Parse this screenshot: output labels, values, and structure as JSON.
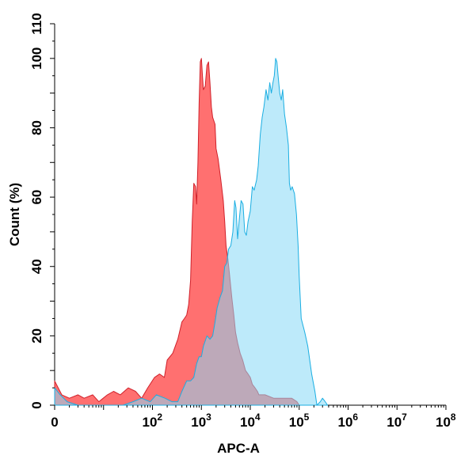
{
  "chart_data": {
    "type": "area",
    "title": "",
    "xlabel": "APC-A",
    "ylabel": "Count (%)",
    "x_scale": "log",
    "xlim": [
      1,
      100000000
    ],
    "ylim": [
      0,
      110
    ],
    "x_tick_labels": [
      {
        "value": 1,
        "base": "0",
        "exp": ""
      },
      {
        "value": 100,
        "base": "10",
        "exp": "2"
      },
      {
        "value": 1000,
        "base": "10",
        "exp": "3"
      },
      {
        "value": 10000,
        "base": "10",
        "exp": "4"
      },
      {
        "value": 100000,
        "base": "10",
        "exp": "5"
      },
      {
        "value": 1000000,
        "base": "10",
        "exp": "6"
      },
      {
        "value": 10000000,
        "base": "10",
        "exp": "7"
      },
      {
        "value": 100000000,
        "base": "10",
        "exp": "8"
      }
    ],
    "y_ticks": [
      0,
      20,
      40,
      60,
      80,
      100,
      110
    ],
    "grid": false,
    "legend": "none",
    "series": [
      {
        "color_fill": "#ff7070",
        "color_line": "#d0202a",
        "points": [
          [
            1,
            7
          ],
          [
            1.4,
            3
          ],
          [
            2,
            2
          ],
          [
            3,
            3
          ],
          [
            4,
            2
          ],
          [
            6,
            3
          ],
          [
            8,
            1
          ],
          [
            12,
            3
          ],
          [
            16,
            4
          ],
          [
            22,
            3
          ],
          [
            32,
            5
          ],
          [
            45,
            4
          ],
          [
            60,
            2
          ],
          [
            80,
            5
          ],
          [
            110,
            8
          ],
          [
            140,
            9
          ],
          [
            175,
            8
          ],
          [
            200,
            13
          ],
          [
            260,
            15
          ],
          [
            330,
            19
          ],
          [
            400,
            24
          ],
          [
            450,
            25
          ],
          [
            500,
            26
          ],
          [
            550,
            29
          ],
          [
            600,
            36
          ],
          [
            650,
            53
          ],
          [
            700,
            64
          ],
          [
            760,
            63
          ],
          [
            800,
            58
          ],
          [
            850,
            70
          ],
          [
            900,
            87
          ],
          [
            950,
            99
          ],
          [
            1000,
            100
          ],
          [
            1050,
            95
          ],
          [
            1100,
            91
          ],
          [
            1200,
            92
          ],
          [
            1300,
            98
          ],
          [
            1400,
            99
          ],
          [
            1500,
            93
          ],
          [
            1600,
            86
          ],
          [
            1700,
            83
          ],
          [
            1900,
            81
          ],
          [
            2000,
            74
          ],
          [
            2200,
            71
          ],
          [
            2500,
            65
          ],
          [
            2800,
            59
          ],
          [
            3000,
            53
          ],
          [
            3200,
            46
          ],
          [
            3500,
            42
          ],
          [
            3800,
            37
          ],
          [
            4200,
            31
          ],
          [
            4600,
            26
          ],
          [
            5000,
            21
          ],
          [
            5500,
            18
          ],
          [
            6200,
            15
          ],
          [
            7000,
            13
          ],
          [
            8000,
            10
          ],
          [
            9000,
            9
          ],
          [
            10000,
            8
          ],
          [
            11000,
            6
          ],
          [
            12500,
            5
          ],
          [
            14000,
            4
          ],
          [
            15000,
            3
          ],
          [
            20000,
            3
          ],
          [
            30000,
            2
          ],
          [
            50000,
            2
          ],
          [
            70000,
            2
          ],
          [
            90000,
            1
          ],
          [
            100000,
            0
          ]
        ]
      },
      {
        "color_fill": "#86d8f6",
        "color_line": "#1aaee2",
        "points": [
          [
            1,
            5
          ],
          [
            1.3,
            3
          ],
          [
            1.8,
            1
          ],
          [
            3,
            0
          ],
          [
            6,
            0
          ],
          [
            12,
            0
          ],
          [
            25,
            0
          ],
          [
            40,
            1
          ],
          [
            60,
            2
          ],
          [
            90,
            1
          ],
          [
            120,
            3
          ],
          [
            180,
            2
          ],
          [
            250,
            1
          ],
          [
            330,
            1
          ],
          [
            400,
            4
          ],
          [
            500,
            7
          ],
          [
            600,
            7
          ],
          [
            700,
            8
          ],
          [
            800,
            12
          ],
          [
            900,
            14
          ],
          [
            1000,
            14
          ],
          [
            1100,
            17
          ],
          [
            1300,
            20
          ],
          [
            1500,
            19
          ],
          [
            1700,
            20
          ],
          [
            1900,
            24
          ],
          [
            2100,
            28
          ],
          [
            2400,
            31
          ],
          [
            2700,
            33
          ],
          [
            3000,
            40
          ],
          [
            3300,
            41
          ],
          [
            3600,
            45
          ],
          [
            4000,
            46
          ],
          [
            4400,
            50
          ],
          [
            4800,
            59
          ],
          [
            5100,
            57
          ],
          [
            5500,
            48
          ],
          [
            6000,
            54
          ],
          [
            6500,
            59
          ],
          [
            7100,
            58
          ],
          [
            7700,
            50
          ],
          [
            8300,
            49
          ],
          [
            9000,
            53
          ],
          [
            10000,
            56
          ],
          [
            11000,
            63
          ],
          [
            12000,
            62
          ],
          [
            13500,
            65
          ],
          [
            14500,
            69
          ],
          [
            16000,
            78
          ],
          [
            17500,
            83
          ],
          [
            19000,
            86
          ],
          [
            21000,
            91
          ],
          [
            23000,
            88
          ],
          [
            25000,
            93
          ],
          [
            27000,
            90
          ],
          [
            29000,
            93
          ],
          [
            31000,
            95
          ],
          [
            33000,
            100
          ],
          [
            35000,
            99
          ],
          [
            37000,
            95
          ],
          [
            40000,
            90
          ],
          [
            43000,
            88
          ],
          [
            46000,
            91
          ],
          [
            50000,
            84
          ],
          [
            55000,
            80
          ],
          [
            60000,
            75
          ],
          [
            63000,
            64
          ],
          [
            67000,
            62
          ],
          [
            72000,
            63
          ],
          [
            80000,
            61
          ],
          [
            88000,
            55
          ],
          [
            95000,
            46
          ],
          [
            100000,
            37
          ],
          [
            110000,
            25
          ],
          [
            130000,
            21
          ],
          [
            150000,
            17
          ],
          [
            180000,
            9
          ],
          [
            210000,
            4
          ],
          [
            230000,
            0
          ],
          [
            270000,
            1
          ],
          [
            300000,
            2
          ],
          [
            340000,
            1
          ],
          [
            380000,
            0
          ]
        ]
      }
    ]
  }
}
